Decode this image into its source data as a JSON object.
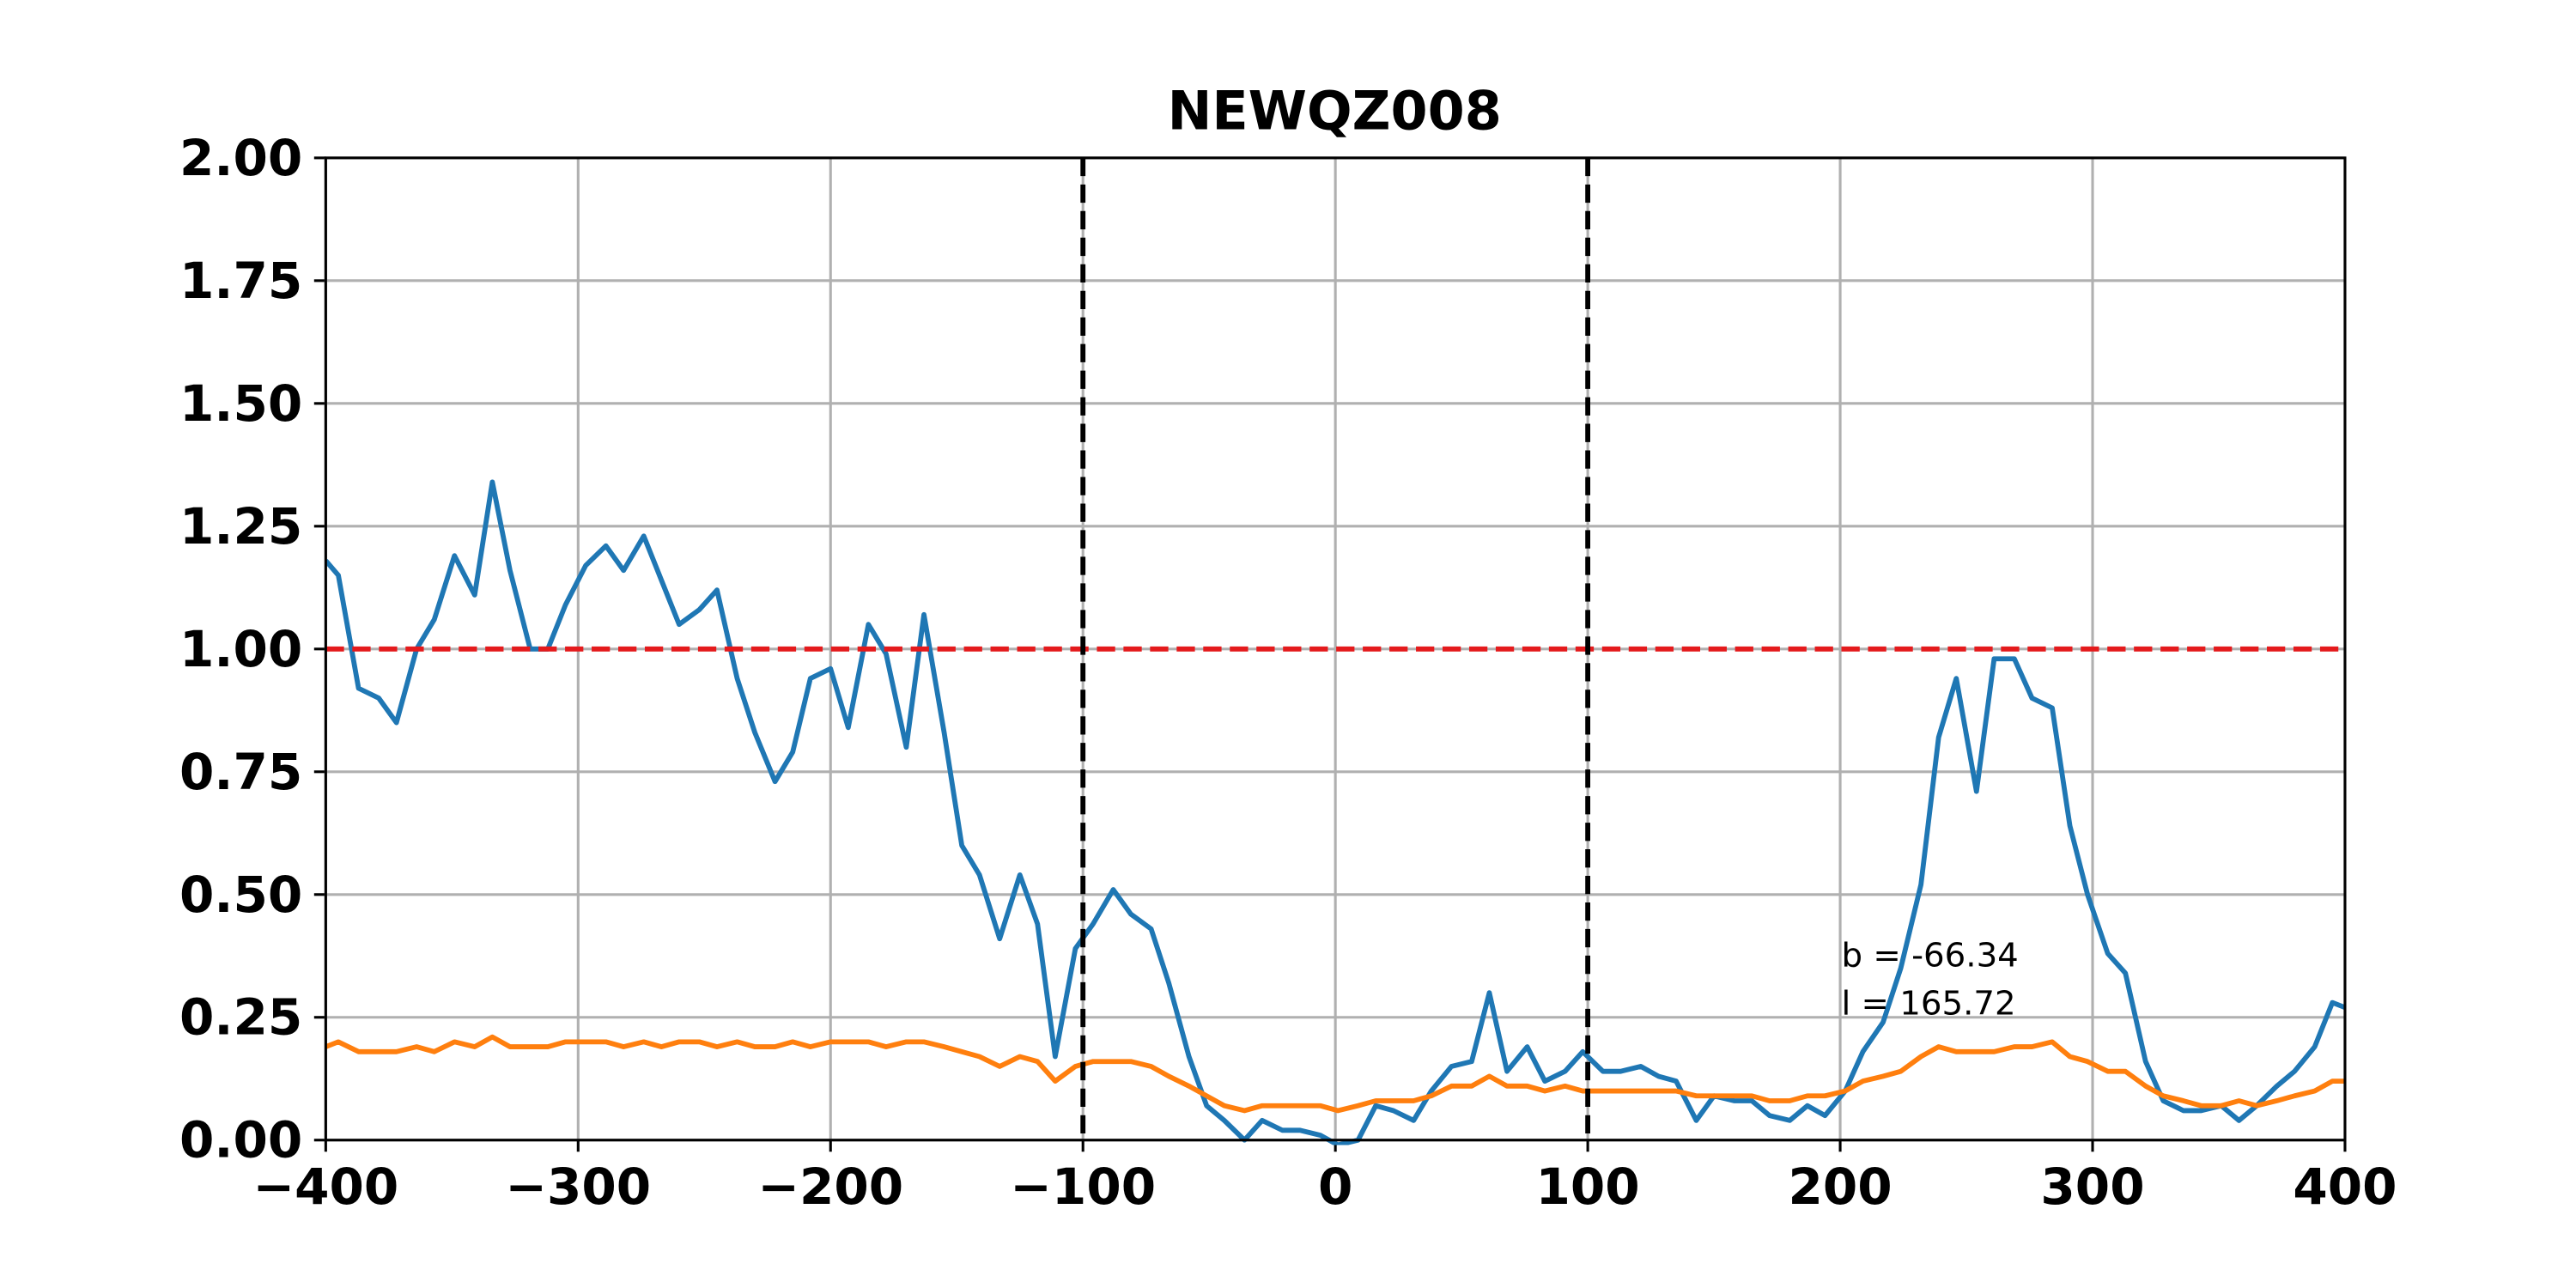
{
  "chart_data": {
    "type": "line",
    "title": "NEWQZ008",
    "x": [
      -400,
      -395,
      -387,
      -379,
      -372,
      -364,
      -357,
      -349,
      -341,
      -334,
      -327,
      -319,
      -312,
      -305,
      -297,
      -289,
      -282,
      -274,
      -267,
      -260,
      -252,
      -245,
      -237,
      -230,
      -222,
      -215,
      -208,
      -200,
      -193,
      -185,
      -178,
      -170,
      -163,
      -155,
      -148,
      -141,
      -133,
      -125,
      -118,
      -111,
      -103,
      -96,
      -88,
      -81,
      -73,
      -66,
      -58,
      -51,
      -44,
      -36,
      -29,
      -21,
      -14,
      -6,
      1,
      9,
      16,
      23,
      31,
      38,
      46,
      54,
      61,
      68,
      76,
      83,
      91,
      98,
      106,
      113,
      121,
      128,
      135,
      143,
      150,
      158,
      165,
      172,
      180,
      187,
      194,
      202,
      209,
      217,
      224,
      232,
      239,
      246,
      254,
      261,
      269,
      276,
      284,
      291,
      298,
      306,
      313,
      321,
      328,
      336,
      343,
      351,
      358,
      365,
      373,
      380,
      388,
      395,
      400
    ],
    "series": [
      {
        "color": "#1f77b4",
        "values": [
          1.18,
          1.15,
          0.92,
          0.9,
          0.85,
          1.0,
          1.06,
          1.19,
          1.11,
          1.34,
          1.16,
          1.0,
          1.0,
          1.09,
          1.17,
          1.21,
          1.16,
          1.23,
          1.14,
          1.05,
          1.08,
          1.12,
          0.94,
          0.83,
          0.73,
          0.79,
          0.94,
          0.96,
          0.84,
          1.05,
          0.99,
          0.8,
          1.07,
          0.83,
          0.6,
          0.54,
          0.41,
          0.54,
          0.44,
          0.17,
          0.39,
          0.44,
          0.51,
          0.46,
          0.43,
          0.32,
          0.17,
          0.07,
          0.04,
          0.0,
          0.04,
          0.02,
          0.02,
          0.01,
          -0.01,
          0.0,
          0.07,
          0.06,
          0.04,
          0.1,
          0.15,
          0.16,
          0.3,
          0.14,
          0.19,
          0.12,
          0.14,
          0.18,
          0.14,
          0.14,
          0.15,
          0.13,
          0.12,
          0.04,
          0.09,
          0.08,
          0.08,
          0.05,
          0.04,
          0.07,
          0.05,
          0.1,
          0.18,
          0.24,
          0.35,
          0.52,
          0.82,
          0.94,
          0.71,
          0.98,
          0.98,
          0.9,
          0.88,
          0.64,
          0.5,
          0.38,
          0.34,
          0.16,
          0.08,
          0.06,
          0.06,
          0.07,
          0.04,
          0.07,
          0.11,
          0.14,
          0.19,
          0.28,
          0.27
        ]
      },
      {
        "color": "#ff7f0e",
        "values": [
          0.19,
          0.2,
          0.18,
          0.18,
          0.18,
          0.19,
          0.18,
          0.2,
          0.19,
          0.21,
          0.19,
          0.19,
          0.19,
          0.2,
          0.2,
          0.2,
          0.19,
          0.2,
          0.19,
          0.2,
          0.2,
          0.19,
          0.2,
          0.19,
          0.19,
          0.2,
          0.19,
          0.2,
          0.2,
          0.2,
          0.19,
          0.2,
          0.2,
          0.19,
          0.18,
          0.17,
          0.15,
          0.17,
          0.16,
          0.12,
          0.15,
          0.16,
          0.16,
          0.16,
          0.15,
          0.13,
          0.11,
          0.09,
          0.07,
          0.06,
          0.07,
          0.07,
          0.07,
          0.07,
          0.06,
          0.07,
          0.08,
          0.08,
          0.08,
          0.09,
          0.11,
          0.11,
          0.13,
          0.11,
          0.11,
          0.1,
          0.11,
          0.1,
          0.1,
          0.1,
          0.1,
          0.1,
          0.1,
          0.09,
          0.09,
          0.09,
          0.09,
          0.08,
          0.08,
          0.09,
          0.09,
          0.1,
          0.12,
          0.13,
          0.14,
          0.17,
          0.19,
          0.18,
          0.18,
          0.18,
          0.19,
          0.19,
          0.2,
          0.17,
          0.16,
          0.14,
          0.14,
          0.11,
          0.09,
          0.08,
          0.07,
          0.07,
          0.08,
          0.07,
          0.08,
          0.09,
          0.1,
          0.12,
          0.12
        ]
      }
    ],
    "xlim": [
      -400,
      400
    ],
    "ylim": [
      0,
      2
    ],
    "xticks": [
      {
        "value": -400,
        "label": "−400"
      },
      {
        "value": -300,
        "label": "−300"
      },
      {
        "value": -200,
        "label": "−200"
      },
      {
        "value": -100,
        "label": "−100"
      },
      0,
      100,
      200,
      300,
      400
    ],
    "yticks": [
      {
        "value": 0,
        "label": "0.00"
      },
      {
        "value": 0.25,
        "label": "0.25"
      },
      {
        "value": 0.5,
        "label": "0.50"
      },
      {
        "value": 0.75,
        "label": "0.75"
      },
      {
        "value": 1,
        "label": "1.00"
      },
      {
        "value": 1.25,
        "label": "1.25"
      },
      {
        "value": 1.5,
        "label": "1.50"
      },
      {
        "value": 1.75,
        "label": "1.75"
      },
      {
        "value": 2,
        "label": "2.00"
      }
    ],
    "grid": true,
    "hlines": [
      {
        "value": 1,
        "color": "#e41a1c"
      }
    ],
    "vlines": [
      {
        "value": -100,
        "color": "#000000"
      },
      {
        "value": 100,
        "color": "#000000"
      }
    ],
    "annotations": [
      "b = -66.34",
      "l = 165.72"
    ]
  }
}
